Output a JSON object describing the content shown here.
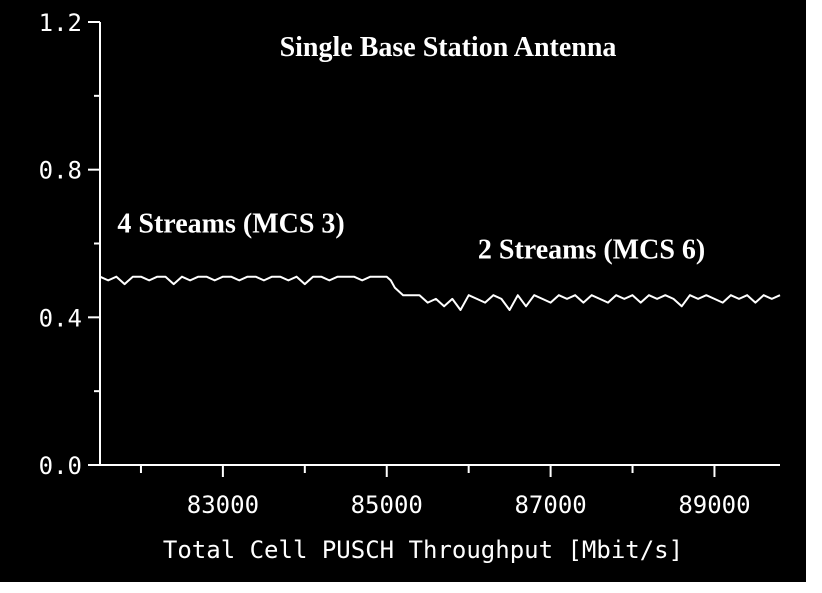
{
  "chart_data": {
    "type": "line",
    "title": "Single Base Station Antenna",
    "xlabel": "Total Cell PUSCH Throughput [Mbit/s]",
    "ylabel": "",
    "xlim": [
      81500,
      89800
    ],
    "ylim": [
      0.0,
      1.2
    ],
    "x_ticks": [
      83000,
      85000,
      87000,
      89000
    ],
    "x_tick_labels": [
      "83000",
      "85000",
      "87000",
      "89000"
    ],
    "y_ticks": [
      0.0,
      0.4,
      0.8,
      1.2
    ],
    "y_tick_labels": [
      "0.0",
      "0.4",
      "0.8",
      "1.2"
    ],
    "grid": false,
    "legend": "none",
    "colors": {
      "background": "#000000",
      "line": "#ffffff",
      "text": "#ffffff",
      "frame": "#ffffff"
    },
    "annotations": [
      {
        "text": "4 Streams (MCS 3)",
        "x": 83100,
        "y": 0.63
      },
      {
        "text": "2 Streams (MCS 6)",
        "x": 87500,
        "y": 0.56
      }
    ],
    "series": [
      {
        "color": "#ffffff",
        "x": [
          81500,
          81600,
          81700,
          81800,
          81900,
          82000,
          82100,
          82200,
          82300,
          82400,
          82500,
          82600,
          82700,
          82800,
          82900,
          83000,
          83100,
          83200,
          83300,
          83400,
          83500,
          83600,
          83700,
          83800,
          83900,
          84000,
          84100,
          84200,
          84300,
          84400,
          84500,
          84600,
          84700,
          84800,
          84900,
          85000,
          85050,
          85100,
          85150,
          85200,
          85300,
          85400,
          85500,
          85600,
          85700,
          85800,
          85900,
          86000,
          86100,
          86200,
          86300,
          86400,
          86500,
          86600,
          86700,
          86800,
          86900,
          87000,
          87100,
          87200,
          87300,
          87400,
          87500,
          87600,
          87700,
          87800,
          87900,
          88000,
          88100,
          88200,
          88300,
          88400,
          88500,
          88600,
          88700,
          88800,
          88900,
          89000,
          89100,
          89200,
          89300,
          89400,
          89500,
          89600,
          89700,
          89800
        ],
        "y": [
          0.51,
          0.5,
          0.51,
          0.49,
          0.51,
          0.51,
          0.5,
          0.51,
          0.51,
          0.49,
          0.51,
          0.5,
          0.51,
          0.51,
          0.5,
          0.51,
          0.51,
          0.5,
          0.51,
          0.51,
          0.5,
          0.51,
          0.51,
          0.5,
          0.51,
          0.49,
          0.51,
          0.51,
          0.5,
          0.51,
          0.51,
          0.51,
          0.5,
          0.51,
          0.51,
          0.51,
          0.5,
          0.48,
          0.47,
          0.46,
          0.46,
          0.46,
          0.44,
          0.45,
          0.43,
          0.45,
          0.42,
          0.46,
          0.45,
          0.44,
          0.46,
          0.45,
          0.42,
          0.46,
          0.43,
          0.46,
          0.45,
          0.44,
          0.46,
          0.45,
          0.46,
          0.44,
          0.46,
          0.45,
          0.44,
          0.46,
          0.45,
          0.46,
          0.44,
          0.46,
          0.45,
          0.46,
          0.45,
          0.43,
          0.46,
          0.45,
          0.46,
          0.45,
          0.44,
          0.46,
          0.45,
          0.46,
          0.44,
          0.46,
          0.45,
          0.46
        ]
      }
    ]
  }
}
